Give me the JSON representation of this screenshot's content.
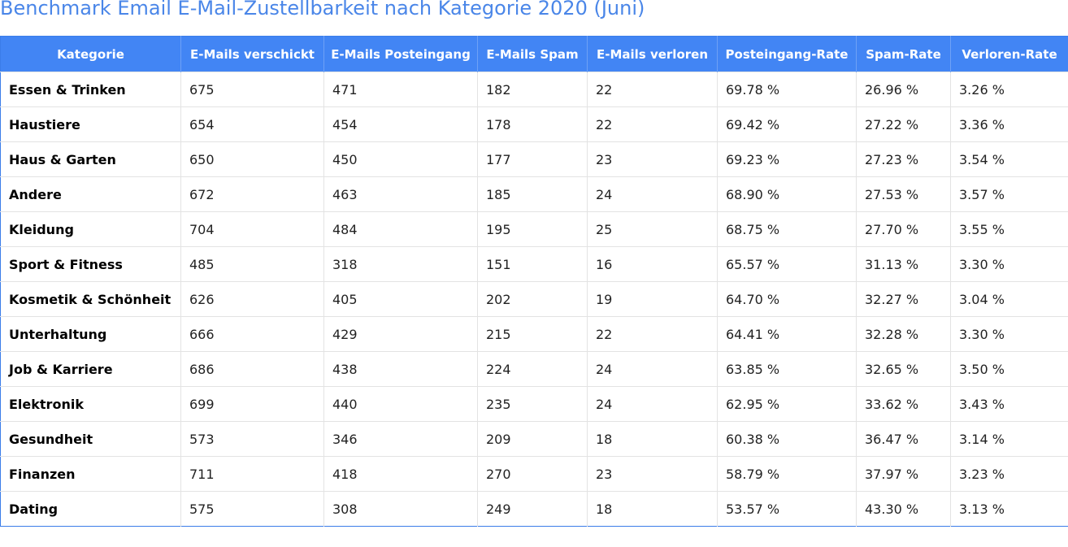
{
  "header": {
    "title": "Benchmark Email E-Mail-Zustellbarkeit nach Kategorie 2020 (Juni)"
  },
  "table": {
    "columns": [
      "Kategorie",
      "E-Mails verschickt",
      "E-Mails Posteingang",
      "E-Mails Spam",
      "E-Mails verloren",
      "Posteingang-Rate",
      "Spam-Rate",
      "Verloren-Rate"
    ],
    "rows": [
      [
        "Essen & Trinken",
        "675",
        "471",
        "182",
        "22",
        "69.78 %",
        "26.96 %",
        "3.26 %"
      ],
      [
        "Haustiere",
        "654",
        "454",
        "178",
        "22",
        "69.42 %",
        "27.22 %",
        "3.36 %"
      ],
      [
        "Haus & Garten",
        "650",
        "450",
        "177",
        "23",
        "69.23 %",
        "27.23 %",
        "3.54 %"
      ],
      [
        "Andere",
        "672",
        "463",
        "185",
        "24",
        "68.90 %",
        "27.53 %",
        "3.57 %"
      ],
      [
        "Kleidung",
        "704",
        "484",
        "195",
        "25",
        "68.75 %",
        "27.70 %",
        "3.55 %"
      ],
      [
        "Sport & Fitness",
        "485",
        "318",
        "151",
        "16",
        "65.57 %",
        "31.13 %",
        "3.30 %"
      ],
      [
        "Kosmetik & Schönheit",
        "626",
        "405",
        "202",
        "19",
        "64.70 %",
        "32.27 %",
        "3.04 %"
      ],
      [
        "Unterhaltung",
        "666",
        "429",
        "215",
        "22",
        "64.41 %",
        "32.28 %",
        "3.30 %"
      ],
      [
        "Job & Karriere",
        "686",
        "438",
        "224",
        "24",
        "63.85 %",
        "32.65 %",
        "3.50 %"
      ],
      [
        "Elektronik",
        "699",
        "440",
        "235",
        "24",
        "62.95 %",
        "33.62 %",
        "3.43 %"
      ],
      [
        "Gesundheit",
        "573",
        "346",
        "209",
        "18",
        "60.38 %",
        "36.47 %",
        "3.14 %"
      ],
      [
        "Finanzen",
        "711",
        "418",
        "270",
        "23",
        "58.79 %",
        "37.97 %",
        "3.23 %"
      ],
      [
        "Dating",
        "575",
        "308",
        "249",
        "18",
        "53.57 %",
        "43.30 %",
        "3.13 %"
      ]
    ]
  }
}
